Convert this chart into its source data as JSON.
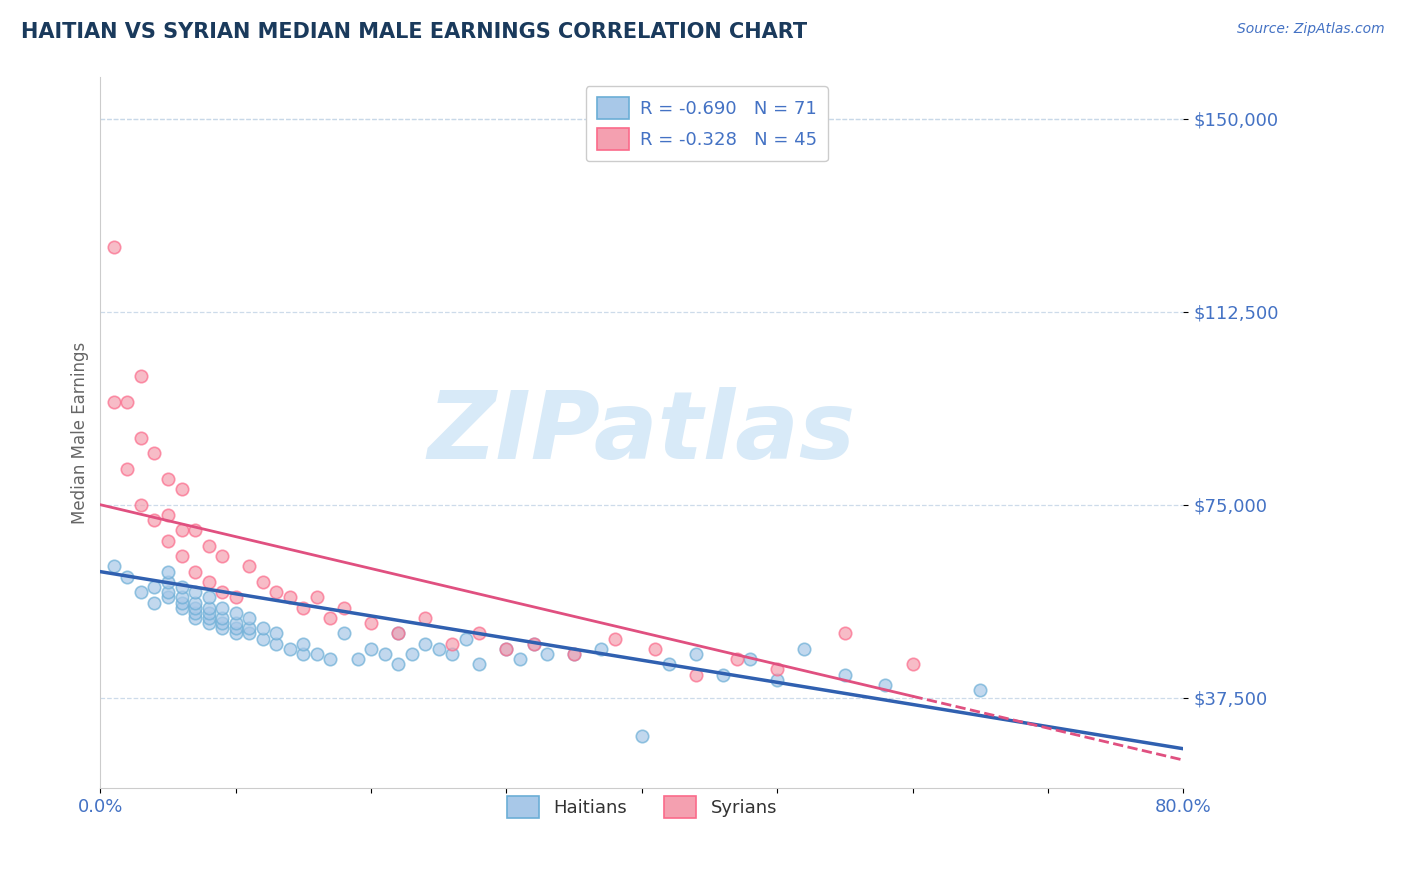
{
  "title": "HAITIAN VS SYRIAN MEDIAN MALE EARNINGS CORRELATION CHART",
  "source": "Source: ZipAtlas.com",
  "xlabel": "",
  "ylabel": "Median Male Earnings",
  "xlim": [
    0.0,
    0.8
  ],
  "ylim": [
    20000,
    158000
  ],
  "yticks": [
    37500,
    75000,
    112500,
    150000
  ],
  "ytick_labels": [
    "$37,500",
    "$75,000",
    "$112,500",
    "$150,000"
  ],
  "xticks": [
    0.0,
    0.1,
    0.2,
    0.3,
    0.4,
    0.5,
    0.6,
    0.7,
    0.8
  ],
  "xtick_labels": [
    "0.0%",
    "",
    "",
    "",
    "",
    "",
    "",
    "",
    "80.0%"
  ],
  "haitian_R": -0.69,
  "haitian_N": 71,
  "syrian_R": -0.328,
  "syrian_N": 45,
  "haitian_color": "#a8c8e8",
  "syrian_color": "#f4a0b0",
  "haitian_edge_color": "#6baed6",
  "syrian_edge_color": "#fb6a8a",
  "haitian_line_color": "#3060b0",
  "syrian_line_color": "#e05080",
  "title_color": "#1a3a5c",
  "axis_label_color": "#4472c4",
  "legend_text_color": "#4472c4",
  "watermark": "ZIPatlas",
  "watermark_color": "#d8eaf8",
  "background_color": "#ffffff",
  "grid_color": "#c8d8e8",
  "haitian_x": [
    0.01,
    0.02,
    0.03,
    0.04,
    0.04,
    0.05,
    0.05,
    0.05,
    0.05,
    0.06,
    0.06,
    0.06,
    0.06,
    0.07,
    0.07,
    0.07,
    0.07,
    0.07,
    0.08,
    0.08,
    0.08,
    0.08,
    0.08,
    0.09,
    0.09,
    0.09,
    0.09,
    0.1,
    0.1,
    0.1,
    0.1,
    0.11,
    0.11,
    0.11,
    0.12,
    0.12,
    0.13,
    0.13,
    0.14,
    0.15,
    0.15,
    0.16,
    0.17,
    0.18,
    0.19,
    0.2,
    0.21,
    0.22,
    0.22,
    0.23,
    0.24,
    0.25,
    0.26,
    0.27,
    0.28,
    0.3,
    0.31,
    0.32,
    0.33,
    0.35,
    0.37,
    0.4,
    0.42,
    0.44,
    0.46,
    0.48,
    0.5,
    0.52,
    0.55,
    0.58,
    0.65
  ],
  "haitian_y": [
    63000,
    61000,
    58000,
    56000,
    59000,
    57000,
    58000,
    60000,
    62000,
    55000,
    56000,
    57000,
    59000,
    53000,
    54000,
    55000,
    56000,
    58000,
    52000,
    53000,
    54000,
    55000,
    57000,
    51000,
    52000,
    53000,
    55000,
    50000,
    51000,
    52000,
    54000,
    50000,
    51000,
    53000,
    49000,
    51000,
    48000,
    50000,
    47000,
    46000,
    48000,
    46000,
    45000,
    50000,
    45000,
    47000,
    46000,
    50000,
    44000,
    46000,
    48000,
    47000,
    46000,
    49000,
    44000,
    47000,
    45000,
    48000,
    46000,
    46000,
    47000,
    30000,
    44000,
    46000,
    42000,
    45000,
    41000,
    47000,
    42000,
    40000,
    39000
  ],
  "syrian_x": [
    0.01,
    0.01,
    0.02,
    0.02,
    0.03,
    0.03,
    0.03,
    0.04,
    0.04,
    0.05,
    0.05,
    0.05,
    0.06,
    0.06,
    0.06,
    0.07,
    0.07,
    0.08,
    0.08,
    0.09,
    0.09,
    0.1,
    0.11,
    0.12,
    0.13,
    0.14,
    0.15,
    0.16,
    0.17,
    0.18,
    0.2,
    0.22,
    0.24,
    0.26,
    0.28,
    0.3,
    0.32,
    0.35,
    0.38,
    0.41,
    0.44,
    0.47,
    0.5,
    0.55,
    0.6
  ],
  "syrian_y": [
    125000,
    95000,
    82000,
    95000,
    75000,
    88000,
    100000,
    72000,
    85000,
    68000,
    73000,
    80000,
    65000,
    70000,
    78000,
    62000,
    70000,
    60000,
    67000,
    58000,
    65000,
    57000,
    63000,
    60000,
    58000,
    57000,
    55000,
    57000,
    53000,
    55000,
    52000,
    50000,
    53000,
    48000,
    50000,
    47000,
    48000,
    46000,
    49000,
    47000,
    42000,
    45000,
    43000,
    50000,
    44000
  ]
}
